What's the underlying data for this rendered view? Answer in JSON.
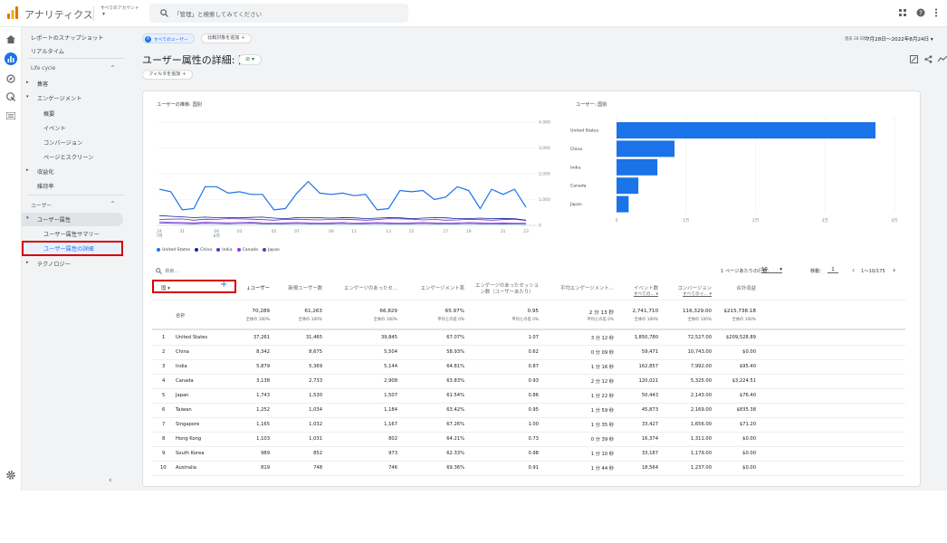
{
  "app": {
    "title": "アナリティクス",
    "account_top": "すべてのアカウント",
    "account_bottom": "▾",
    "search_placeholder": "「管理」と検索してみてください"
  },
  "sidebar": {
    "snapshot": "レポートのスナップショット",
    "realtime": "リアルタイム",
    "lifecycle": "Life cycle",
    "acquisition": "集客",
    "engagement": "エンゲージメント",
    "overview": "概要",
    "events": "イベント",
    "conversions": "コンバージョン",
    "pages": "ページとスクリーン",
    "monetization": "収益化",
    "retention": "維持率",
    "user_section": "ユーザー",
    "user_attributes": "ユーザー属性",
    "attr_summary": "ユーザー属性サマリー",
    "attr_detail": "ユーザー属性の詳細",
    "technology": "テクノロジー"
  },
  "header": {
    "segment_chip": "すべてのユーザー",
    "compare_chip": "比較対象を追加 ＋",
    "date_label": "過去 28 日間",
    "date_range": "7月28日〜2022年8月24日 ▾",
    "page_title": "ユーザー属性の詳細: 国",
    "filter_chip": "フィルタを追加 ＋"
  },
  "chart_data": [
    {
      "type": "line",
      "title": "ユーザーの推移: 国別",
      "yticks": [
        "4,000",
        "3,000",
        "2,000",
        "1,000",
        "0"
      ],
      "xticks": [
        "24\n7月",
        "31",
        "06\n8月",
        "03",
        "05",
        "07",
        "09",
        "11",
        "13",
        "15",
        "17",
        "19",
        "21",
        "23"
      ],
      "ylim": [
        0,
        4000
      ],
      "series": [
        {
          "name": "United States",
          "color": "#1a73e8",
          "values": [
            1400,
            1300,
            600,
            650,
            1500,
            1500,
            1250,
            1300,
            1200,
            1200,
            600,
            650,
            1250,
            1700,
            1250,
            1200,
            1250,
            1150,
            1200,
            600,
            650,
            1350,
            1300,
            1350,
            1000,
            1100,
            1500,
            1350,
            650,
            1400,
            1200,
            1400,
            700
          ]
        },
        {
          "name": "China",
          "color": "#12239e",
          "values": [
            380,
            350,
            330,
            300,
            320,
            300,
            300,
            290,
            310,
            320,
            280,
            260,
            300,
            300,
            290,
            280,
            300,
            290,
            260,
            280,
            300,
            290,
            260,
            280,
            300,
            290,
            260,
            260,
            280,
            260,
            270,
            260,
            200
          ]
        },
        {
          "name": "India",
          "color": "#5e35b1",
          "values": [
            230,
            240,
            250,
            200,
            240,
            230,
            260,
            250,
            240,
            220,
            200,
            230,
            240,
            220,
            210,
            230,
            240,
            220,
            200,
            220,
            260,
            250,
            240,
            210,
            230,
            200,
            210,
            230,
            220,
            200,
            220,
            240,
            190
          ]
        },
        {
          "name": "Canada",
          "color": "#9334e6",
          "values": [
            140,
            120,
            110,
            100,
            120,
            110,
            100,
            110,
            120,
            100,
            90,
            100,
            110,
            100,
            90,
            100,
            110,
            90,
            100,
            110,
            100,
            90,
            100,
            110,
            100,
            90,
            100,
            110,
            100,
            90,
            100,
            90,
            80
          ]
        },
        {
          "name": "Japan",
          "color": "#3949ab",
          "values": [
            90,
            80,
            70,
            60,
            80,
            70,
            60,
            70,
            80,
            60,
            50,
            60,
            70,
            60,
            50,
            60,
            70,
            50,
            60,
            70,
            60,
            50,
            60,
            70,
            60,
            50,
            60,
            70,
            60,
            50,
            60,
            50,
            40
          ]
        }
      ]
    },
    {
      "type": "bar",
      "title": "ユーザー: 国別",
      "categories": [
        "United States",
        "China",
        "India",
        "Canada",
        "Japan"
      ],
      "values": [
        37261,
        8342,
        5879,
        3138,
        1743
      ],
      "xticks": [
        "0",
        "1万",
        "2万",
        "3万",
        "4万"
      ],
      "xlim": [
        0,
        40000
      ]
    }
  ],
  "table": {
    "search_placeholder": "検索...",
    "rows_per_page_label": "1 ページあたりの行数:",
    "rows_per_page": "10",
    "goto_label": "移動:",
    "goto_value": "1",
    "pagination": "1〜10/175",
    "dimension": "国 ▾",
    "columns": [
      "↓ユーザー",
      "新規ユーザー数",
      "エンゲージのあったセ...",
      "エンゲージメント率",
      "エンゲージのあったセッション数（ユーザーあたり）",
      "平均エンゲージメント...",
      "イベント数",
      "コンバージョン",
      "合計収益"
    ],
    "column_sub": [
      "",
      "",
      "",
      "",
      "",
      "",
      "すべての... ▾",
      "すべてのイ... ▾",
      ""
    ],
    "totals": {
      "label": "合計",
      "values": [
        "70,289",
        "61,263",
        "66,829",
        "65.97%",
        "0.95",
        "2 分 13 秒",
        "2,741,710",
        "116,329.00",
        "$215,738.18"
      ],
      "subs": [
        "全体の 100%",
        "全体の 100%",
        "全体の 100%",
        "平均との差 0%",
        "平均との差 0%",
        "平均との差 0%",
        "全体の 100%",
        "全体の 100%",
        "全体の 100%"
      ]
    },
    "rows": [
      {
        "n": "1",
        "country": "United States",
        "v": [
          "37,261",
          "31,465",
          "39,845",
          "67.07%",
          "1.07",
          "3 分 12 秒",
          "1,850,780",
          "72,527.00",
          "$209,528.89"
        ]
      },
      {
        "n": "2",
        "country": "China",
        "v": [
          "8,342",
          "8,675",
          "5,504",
          "58.93%",
          "0.62",
          "0 分 09 秒",
          "59,471",
          "10,743.00",
          "$0.00"
        ]
      },
      {
        "n": "3",
        "country": "India",
        "v": [
          "5,879",
          "5,369",
          "5,144",
          "64.81%",
          "0.87",
          "1 分 16 秒",
          "162,857",
          "7,992.00",
          "$95.40"
        ]
      },
      {
        "n": "4",
        "country": "Canada",
        "v": [
          "3,138",
          "2,733",
          "2,908",
          "63.83%",
          "0.93",
          "2 分 12 秒",
          "120,021",
          "5,325.00",
          "$3,224.51"
        ]
      },
      {
        "n": "5",
        "country": "Japan",
        "v": [
          "1,743",
          "1,530",
          "1,507",
          "61.54%",
          "0.86",
          "1 分 22 秒",
          "50,443",
          "2,143.00",
          "$76.40"
        ]
      },
      {
        "n": "6",
        "country": "Taiwan",
        "v": [
          "1,252",
          "1,034",
          "1,184",
          "63.42%",
          "0.95",
          "1 分 59 秒",
          "45,873",
          "2,169.00",
          "$835.38"
        ]
      },
      {
        "n": "7",
        "country": "Singapore",
        "v": [
          "1,165",
          "1,032",
          "1,167",
          "67.26%",
          "1.00",
          "1 分 35 秒",
          "33,427",
          "1,656.00",
          "$71.20"
        ]
      },
      {
        "n": "8",
        "country": "Hong Kong",
        "v": [
          "1,103",
          "1,031",
          "802",
          "64.21%",
          "0.73",
          "0 分 39 秒",
          "16,374",
          "1,311.00",
          "$0.00"
        ]
      },
      {
        "n": "9",
        "country": "South Korea",
        "v": [
          "989",
          "852",
          "973",
          "62.33%",
          "0.98",
          "1 分 10 秒",
          "33,187",
          "1,179.00",
          "$0.00"
        ]
      },
      {
        "n": "10",
        "country": "Australia",
        "v": [
          "819",
          "748",
          "746",
          "69.36%",
          "0.91",
          "1 分 44 秒",
          "18,564",
          "1,237.00",
          "$0.00"
        ]
      }
    ]
  },
  "colors": {
    "accent": "#1a73e8",
    "highlight": "#d50000",
    "selected_bg": "#e8f0fe"
  },
  "icons": [
    "analytics-logo-icon",
    "search-icon",
    "apps-icon",
    "help-icon",
    "more-vert-icon",
    "home-icon",
    "reports-icon",
    "explore-icon",
    "advertising-icon",
    "list-icon",
    "settings-icon",
    "collapse-icon"
  ]
}
